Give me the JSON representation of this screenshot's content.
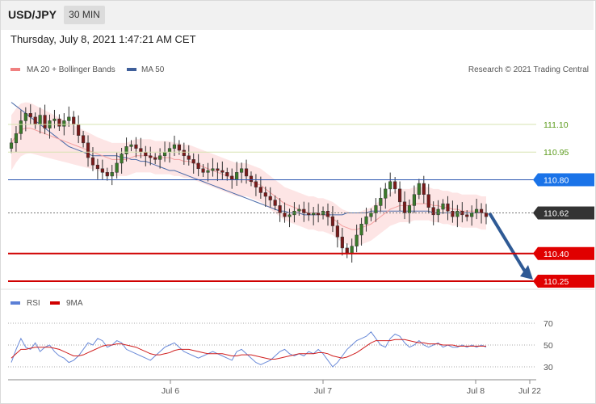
{
  "header": {
    "symbol": "USD/JPY",
    "timeframe": "30 MIN",
    "datetime": "Thursday, July 8, 2021 1:47:21 AM CET"
  },
  "price_chart": {
    "legend": [
      {
        "label": "MA 20 + Bollinger Bands",
        "color": "#f08080"
      },
      {
        "label": "MA 50",
        "color": "#3f5f9a"
      }
    ],
    "credit": "Research © 2021 Trading Central",
    "levels": [
      {
        "value": "111.10",
        "kind": "text",
        "color": "#5a9a1a",
        "line": "#d7e3b0"
      },
      {
        "value": "110.95",
        "kind": "text",
        "color": "#5a9a1a",
        "line": "#d7e3b0"
      },
      {
        "value": "110.80",
        "kind": "badge",
        "color": "#1a73e8",
        "line": "#2a55b0"
      },
      {
        "value": "110.62",
        "kind": "badge",
        "color": "#333333",
        "line": "#777777"
      },
      {
        "value": "110.40",
        "kind": "badge",
        "color": "#e00000",
        "line": "#d00000"
      },
      {
        "value": "110.25",
        "kind": "badge",
        "color": "#e00000",
        "line": "#d00000"
      }
    ]
  },
  "rsi_chart": {
    "legend": [
      {
        "label": "RSI",
        "color": "#5b7fd6"
      },
      {
        "label": "9MA",
        "color": "#d00000"
      }
    ],
    "levels": [
      "70",
      "50",
      "30"
    ]
  },
  "xaxis": {
    "labels": [
      "Jul 6",
      "Jul 7",
      "Jul 8",
      "Jul 22"
    ]
  },
  "chart_data": {
    "type": "candlestick",
    "ylim": [
      110.2,
      111.35
    ],
    "close_series": [
      111.0,
      111.05,
      111.12,
      111.16,
      111.14,
      111.1,
      111.15,
      111.08,
      111.12,
      111.13,
      111.09,
      111.12,
      111.14,
      111.1,
      111.04,
      111.0,
      110.92,
      110.88,
      110.86,
      110.84,
      110.82,
      110.84,
      110.89,
      110.94,
      110.98,
      110.99,
      110.97,
      110.95,
      110.93,
      110.92,
      110.91,
      110.93,
      110.95,
      110.97,
      110.99,
      110.96,
      110.93,
      110.91,
      110.89,
      110.86,
      110.84,
      110.85,
      110.86,
      110.85,
      110.84,
      110.82,
      110.8,
      110.84,
      110.86,
      110.82,
      110.79,
      110.76,
      110.73,
      110.71,
      110.69,
      110.66,
      110.62,
      110.6,
      110.61,
      110.63,
      110.64,
      110.62,
      110.61,
      110.62,
      110.61,
      110.63,
      110.6,
      110.55,
      110.49,
      110.43,
      110.4,
      110.44,
      110.5,
      110.56,
      110.6,
      110.62,
      110.66,
      110.7,
      110.75,
      110.79,
      110.75,
      110.68,
      110.62,
      110.66,
      110.72,
      110.78,
      110.72,
      110.65,
      110.61,
      110.64,
      110.67,
      110.63,
      110.6,
      110.63,
      110.61,
      110.6,
      110.62,
      110.64,
      110.62,
      110.6
    ],
    "ma20_series": [
      111.0,
      111.04,
      111.07,
      111.08,
      111.08,
      111.07,
      111.06,
      111.05,
      111.04,
      111.03,
      111.02,
      111.01,
      111.0,
      110.99,
      110.98,
      110.97,
      110.96,
      110.95,
      110.94,
      110.93,
      110.92,
      110.91,
      110.91,
      110.91,
      110.91,
      110.92,
      110.93,
      110.93,
      110.93,
      110.93,
      110.92,
      110.92,
      110.92,
      110.92,
      110.91,
      110.91,
      110.9,
      110.9,
      110.89,
      110.88,
      110.87,
      110.86,
      110.85,
      110.84,
      110.83,
      110.82,
      110.81,
      110.8,
      110.8,
      110.8,
      110.79,
      110.78,
      110.77,
      110.75,
      110.73,
      110.71,
      110.69,
      110.67,
      110.66,
      110.65,
      110.64,
      110.63,
      110.62,
      110.62,
      110.61,
      110.61,
      110.6,
      110.59,
      110.57,
      110.55,
      110.54,
      110.53,
      110.53,
      110.54,
      110.55,
      110.56,
      110.58,
      110.6,
      110.62,
      110.64,
      110.65,
      110.66,
      110.66,
      110.66,
      110.67,
      110.67,
      110.67,
      110.67,
      110.66,
      110.66,
      110.65,
      110.65,
      110.64,
      110.64,
      110.63,
      110.63,
      110.63,
      110.63,
      110.62,
      110.62
    ],
    "ma50_series": [
      111.22,
      111.2,
      111.18,
      111.16,
      111.14,
      111.12,
      111.1,
      111.08,
      111.06,
      111.04,
      111.02,
      111.0,
      110.98,
      110.97,
      110.96,
      110.95,
      110.94,
      110.93,
      110.93,
      110.93,
      110.93,
      110.93,
      110.93,
      110.92,
      110.92,
      110.91,
      110.91,
      110.9,
      110.9,
      110.89,
      110.88,
      110.87,
      110.86,
      110.85,
      110.85,
      110.84,
      110.83,
      110.82,
      110.81,
      110.8,
      110.79,
      110.78,
      110.77,
      110.76,
      110.75,
      110.74,
      110.73,
      110.72,
      110.71,
      110.7,
      110.69,
      110.68,
      110.67,
      110.66,
      110.65,
      110.64,
      110.63,
      110.63,
      110.62,
      110.62,
      110.62,
      110.61,
      110.61,
      110.61,
      110.61,
      110.61,
      110.61,
      110.61,
      110.61,
      110.61,
      110.62,
      110.62,
      110.62,
      110.62,
      110.62,
      110.63,
      110.63,
      110.63,
      110.63,
      110.63,
      110.63,
      110.63,
      110.63,
      110.63,
      110.63,
      110.63,
      110.63,
      110.63,
      110.62,
      110.62,
      110.62,
      110.62,
      110.62,
      110.62,
      110.62,
      110.62,
      110.62,
      110.62,
      110.62,
      110.62
    ],
    "bollinger_halfwidth": 0.09,
    "forecast_arrow": {
      "from": 110.62,
      "to": 110.25
    },
    "rsi_series": [
      34,
      46,
      56,
      48,
      46,
      52,
      44,
      48,
      50,
      44,
      40,
      38,
      34,
      36,
      40,
      46,
      52,
      50,
      56,
      54,
      48,
      50,
      54,
      52,
      46,
      44,
      42,
      40,
      38,
      36,
      40,
      44,
      48,
      50,
      52,
      48,
      44,
      42,
      40,
      38,
      40,
      42,
      44,
      42,
      40,
      38,
      36,
      44,
      46,
      42,
      38,
      34,
      32,
      34,
      36,
      40,
      44,
      46,
      42,
      40,
      42,
      40,
      44,
      42,
      46,
      42,
      36,
      30,
      34,
      40,
      46,
      50,
      54,
      56,
      58,
      62,
      56,
      50,
      48,
      56,
      60,
      58,
      52,
      48,
      50,
      54,
      50,
      48,
      50,
      52,
      48,
      50,
      48,
      48,
      50,
      48,
      50,
      48,
      50,
      48
    ],
    "rsi_ma_series": [
      38,
      42,
      46,
      46,
      47,
      48,
      48,
      48,
      48,
      47,
      46,
      44,
      42,
      40,
      40,
      41,
      43,
      45,
      47,
      49,
      50,
      50,
      51,
      51,
      50,
      49,
      48,
      46,
      44,
      42,
      41,
      41,
      42,
      43,
      45,
      46,
      46,
      46,
      45,
      44,
      43,
      42,
      42,
      42,
      42,
      41,
      40,
      40,
      41,
      41,
      41,
      40,
      39,
      38,
      37,
      37,
      38,
      39,
      40,
      41,
      42,
      42,
      42,
      42,
      43,
      43,
      42,
      40,
      39,
      38,
      39,
      41,
      43,
      46,
      49,
      52,
      54,
      54,
      54,
      54,
      55,
      55,
      55,
      54,
      53,
      52,
      52,
      51,
      51,
      51,
      50,
      50,
      50,
      49,
      49,
      49,
      49,
      49,
      49,
      49
    ],
    "rsi_ylim": [
      20,
      80
    ]
  }
}
